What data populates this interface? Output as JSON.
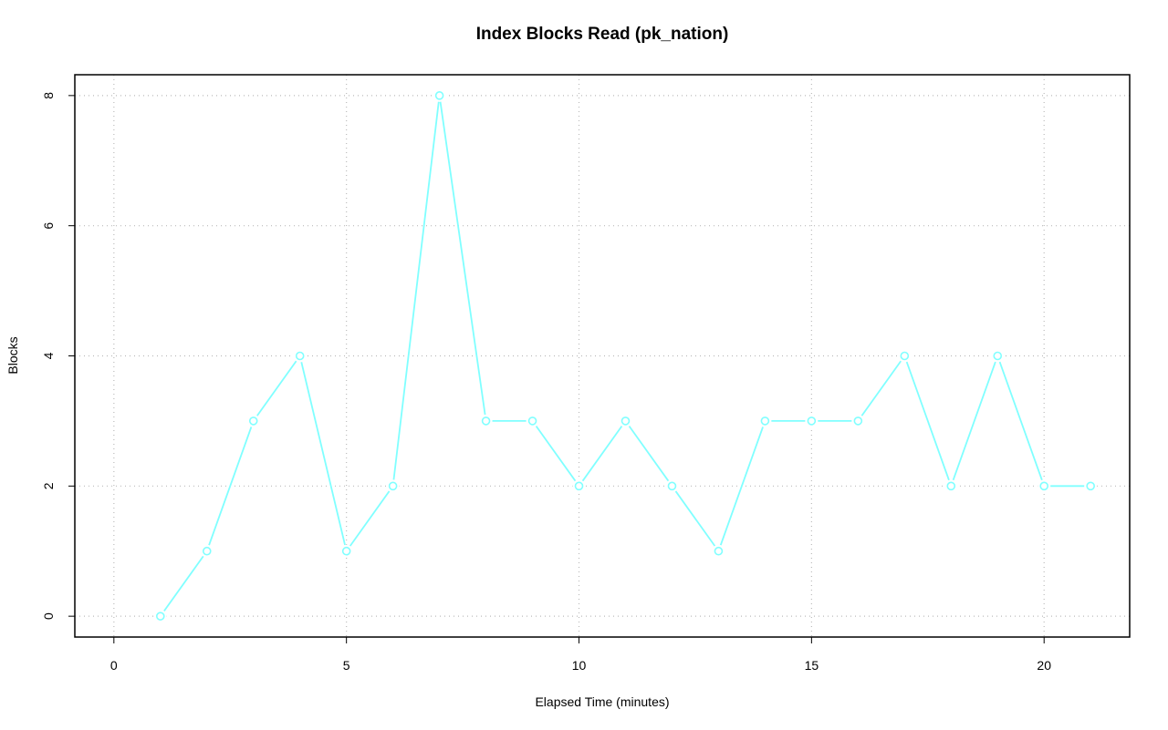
{
  "chart_data": {
    "type": "line",
    "title": "Index Blocks Read (pk_nation)",
    "x_label": "Elapsed Time (minutes)",
    "y_label": "Blocks",
    "x": [
      1,
      2,
      3,
      4,
      5,
      6,
      7,
      8,
      9,
      10,
      11,
      12,
      13,
      14,
      15,
      16,
      17,
      18,
      19,
      20,
      21
    ],
    "series": [
      {
        "name": "pk_nation",
        "color": "#80ffff",
        "values": [
          0,
          1,
          3,
          4,
          1,
          2,
          8,
          3,
          3,
          2,
          3,
          2,
          1,
          3,
          3,
          3,
          4,
          2,
          4,
          2,
          2
        ]
      }
    ],
    "xlim": [
      -0.84,
      21.84
    ],
    "xticks": [
      0,
      5,
      10,
      15,
      20
    ],
    "ylim": [
      -0.32,
      8.32
    ],
    "yticks": [
      0,
      2,
      4,
      6,
      8
    ],
    "grid": true
  }
}
